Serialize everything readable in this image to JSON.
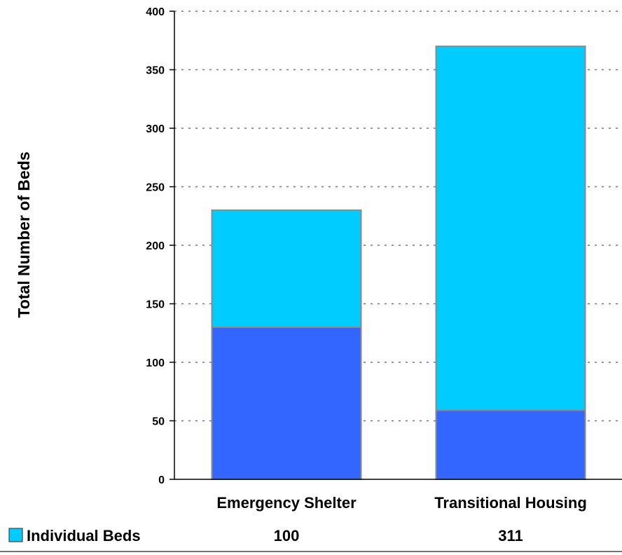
{
  "chart_data": {
    "type": "bar",
    "stacked": true,
    "categories": [
      "Emergency Shelter",
      "Transitional Housing"
    ],
    "series": [
      {
        "values": [
          130,
          59
        ],
        "color": "#3366ff"
      },
      {
        "name": "Individual Beds",
        "values": [
          100,
          311
        ],
        "color": "#00ccff"
      }
    ],
    "ylabel": "Total Number of Beds",
    "xlabel": "",
    "ylim": [
      0,
      400
    ],
    "yticks": [
      0,
      50,
      100,
      150,
      200,
      250,
      300,
      350,
      400
    ],
    "grid": true,
    "data_table": {
      "rows": [
        {
          "label": "Individual Beds",
          "color": "#00ccff",
          "values": [
            "100",
            "311"
          ]
        }
      ]
    }
  }
}
